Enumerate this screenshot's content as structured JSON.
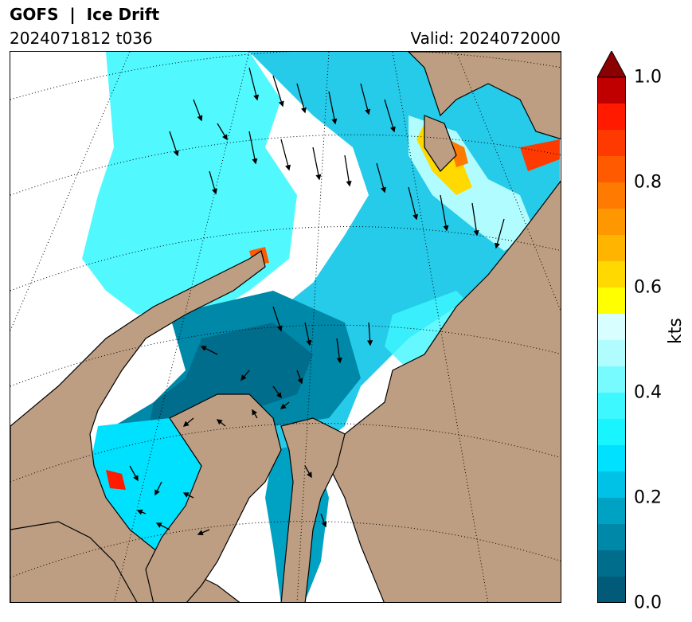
{
  "header": {
    "title": "GOFS  |  Ice Drift",
    "run": "2024071812 t036",
    "valid": "Valid: 2024072000"
  },
  "colorbar": {
    "unit": "kts",
    "min": 0.0,
    "max": 1.0,
    "extend": "max",
    "tick_labels": [
      "0.0",
      "0.2",
      "0.4",
      "0.6",
      "0.8",
      "1.0"
    ],
    "tick_values": [
      0.0,
      0.2,
      0.4,
      0.6,
      0.8,
      1.0
    ],
    "levels": [
      {
        "from": 0.0,
        "to": 0.05,
        "color": "#005a78"
      },
      {
        "from": 0.05,
        "to": 0.1,
        "color": "#006d8c"
      },
      {
        "from": 0.1,
        "to": 0.15,
        "color": "#0088a8"
      },
      {
        "from": 0.15,
        "to": 0.2,
        "color": "#00a2c4"
      },
      {
        "from": 0.2,
        "to": 0.25,
        "color": "#00c2e6"
      },
      {
        "from": 0.25,
        "to": 0.3,
        "color": "#00e0ff"
      },
      {
        "from": 0.3,
        "to": 0.35,
        "color": "#19f5ff"
      },
      {
        "from": 0.35,
        "to": 0.4,
        "color": "#3ef8ff"
      },
      {
        "from": 0.4,
        "to": 0.45,
        "color": "#78fbff"
      },
      {
        "from": 0.45,
        "to": 0.5,
        "color": "#b0fcff"
      },
      {
        "from": 0.5,
        "to": 0.55,
        "color": "#d9feff"
      },
      {
        "from": 0.55,
        "to": 0.6,
        "color": "#ffff00"
      },
      {
        "from": 0.6,
        "to": 0.65,
        "color": "#ffd900"
      },
      {
        "from": 0.65,
        "to": 0.7,
        "color": "#ffb400"
      },
      {
        "from": 0.7,
        "to": 0.75,
        "color": "#ff9700"
      },
      {
        "from": 0.75,
        "to": 0.8,
        "color": "#ff7a00"
      },
      {
        "from": 0.8,
        "to": 0.85,
        "color": "#ff5a00"
      },
      {
        "from": 0.85,
        "to": 0.9,
        "color": "#ff3a00"
      },
      {
        "from": 0.9,
        "to": 0.95,
        "color": "#ff1a00"
      },
      {
        "from": 0.95,
        "to": 1.0,
        "color": "#c00000"
      }
    ],
    "extend_color": "#8b0000"
  },
  "map": {
    "land_color": "#bd9e82",
    "ocean_color": "#ffffff",
    "coastline_color": "#000000",
    "graticule_style": "dotted"
  }
}
